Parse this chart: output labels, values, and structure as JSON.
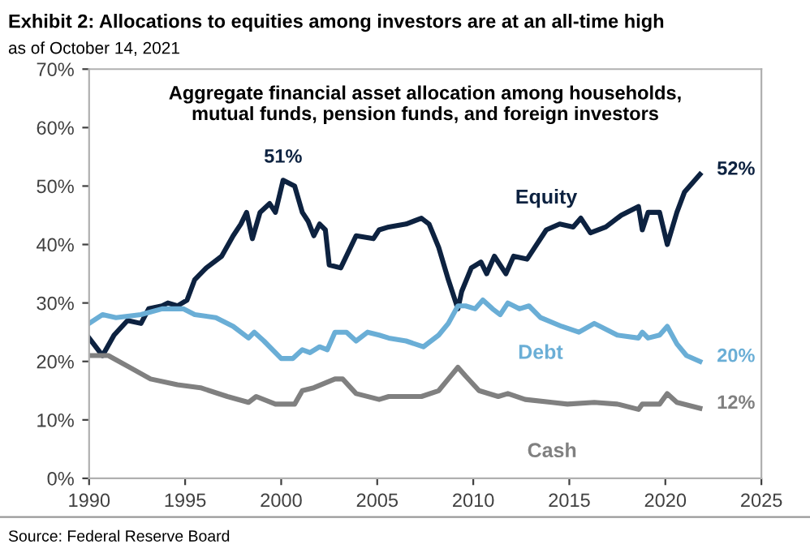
{
  "chart_data": {
    "type": "line",
    "title": "Exhibit 2: Allocations to equities among investors are at an all-time high",
    "subtitle": "as of October 14, 2021",
    "annotations": [
      "Aggregate financial asset allocation among households,\nmutual funds, pension funds, and foreign investors",
      "Source: Federal Reserve Board"
    ],
    "xlim": [
      1990,
      2025
    ],
    "ylim": [
      0,
      70
    ],
    "xticks": [
      1990,
      1995,
      2000,
      2005,
      2010,
      2015,
      2020,
      2025
    ],
    "yticks": [
      {
        "value": 0,
        "label": "0%"
      },
      {
        "value": 10,
        "label": "10%"
      },
      {
        "value": 20,
        "label": "20%"
      },
      {
        "value": 30,
        "label": "30%"
      },
      {
        "value": 40,
        "label": "40%"
      },
      {
        "value": 50,
        "label": "50%"
      },
      {
        "value": 60,
        "label": "60%"
      },
      {
        "value": 70,
        "label": "70%"
      }
    ],
    "grid": false,
    "legend": false,
    "marker": "none",
    "line_style": "solid",
    "series": [
      {
        "name": "Equity",
        "color": "#0d2240",
        "x": [
          1990,
          1990.7,
          1991.3,
          1992.0,
          1992.7,
          1993.1,
          1993.8,
          1994.1,
          1994.6,
          1995.1,
          1995.5,
          1996.1,
          1996.9,
          1997.5,
          1997.9,
          1998.2,
          1998.5,
          1998.9,
          1999.4,
          1999.7,
          2000.1,
          2000.7,
          2001.1,
          2001.4,
          2001.7,
          2002.0,
          2002.3,
          2002.5,
          2003.1,
          2003.9,
          2004.8,
          2005.1,
          2005.6,
          2006.5,
          2007.3,
          2007.7,
          2008.2,
          2008.7,
          2009.2,
          2009.4,
          2009.9,
          2010.4,
          2010.7,
          2011.1,
          2011.7,
          2012.1,
          2012.8,
          2013.8,
          2014.5,
          2015.2,
          2015.6,
          2016.1,
          2016.9,
          2017.7,
          2018.6,
          2018.8,
          2019.1,
          2019.7,
          2020.1,
          2020.6,
          2021.0,
          2021.8
        ],
        "value_labels": [
          null,
          null,
          null,
          null,
          null,
          null,
          null,
          null,
          null,
          null,
          null,
          null,
          null,
          null,
          null,
          null,
          null,
          null,
          null,
          null,
          "51%",
          null,
          null,
          null,
          null,
          null,
          null,
          null,
          null,
          null,
          null,
          null,
          null,
          null,
          null,
          null,
          null,
          null,
          null,
          null,
          null,
          null,
          null,
          null,
          null,
          null,
          null,
          null,
          null,
          null,
          null,
          null,
          null,
          null,
          null,
          null,
          null,
          null,
          null,
          null,
          null,
          "52%"
        ],
        "values": [
          24,
          21,
          24.5,
          27,
          26.5,
          29,
          29.5,
          30,
          29.5,
          30.5,
          34,
          36,
          38,
          41.5,
          43.5,
          45.5,
          41,
          45.5,
          47,
          45.5,
          51,
          50,
          45.5,
          44,
          41.5,
          43.5,
          42.5,
          36.5,
          36,
          41.5,
          41,
          42.5,
          43,
          43.5,
          44.5,
          43.5,
          39.5,
          34,
          29,
          32,
          36,
          37,
          35,
          38,
          35,
          38,
          37.5,
          42.5,
          43.5,
          43,
          44.5,
          42,
          43,
          45,
          46.5,
          42.5,
          45.5,
          45.5,
          40,
          45.5,
          49,
          52
        ]
      },
      {
        "name": "Debt",
        "color": "#6aaed6",
        "x": [
          1990,
          1990.7,
          1991.4,
          1992.7,
          1993.8,
          1994.9,
          1995.5,
          1996.6,
          1997.5,
          1998.3,
          1998.6,
          1999.1,
          2000.0,
          2000.6,
          2001.1,
          2001.5,
          2002.0,
          2002.4,
          2002.8,
          2003.4,
          2003.9,
          2004.5,
          2005.1,
          2005.6,
          2006.5,
          2007.4,
          2008.2,
          2008.7,
          2009.2,
          2009.6,
          2010.1,
          2010.5,
          2011.0,
          2011.4,
          2011.8,
          2012.4,
          2012.9,
          2013.5,
          2014.6,
          2015.5,
          2016.3,
          2017.5,
          2018.6,
          2018.8,
          2019.1,
          2019.7,
          2020.1,
          2020.6,
          2021.1,
          2021.8
        ],
        "value_labels": [
          null,
          null,
          null,
          null,
          null,
          null,
          null,
          null,
          null,
          null,
          null,
          null,
          null,
          null,
          null,
          null,
          null,
          null,
          null,
          null,
          null,
          null,
          null,
          null,
          null,
          null,
          null,
          null,
          null,
          null,
          null,
          null,
          null,
          null,
          null,
          null,
          null,
          null,
          null,
          null,
          null,
          null,
          null,
          null,
          null,
          null,
          null,
          null,
          null,
          "20%"
        ],
        "values": [
          26.5,
          28,
          27.5,
          28,
          29,
          29,
          28,
          27.5,
          26,
          24,
          25,
          23.5,
          20.5,
          20.5,
          22,
          21.5,
          22.5,
          22,
          25,
          25,
          23.5,
          25,
          24.5,
          24,
          23.5,
          22.5,
          24.5,
          26.5,
          29.5,
          29.5,
          29,
          30.5,
          29,
          28,
          30,
          29,
          29.5,
          27.5,
          26,
          25,
          26.5,
          24.5,
          24,
          25,
          24,
          24.5,
          26,
          23,
          21,
          20
        ]
      },
      {
        "name": "Cash",
        "color": "#808080",
        "x": [
          1990,
          1991.0,
          1992.1,
          1993.2,
          1994.6,
          1995.8,
          1997.2,
          1998.3,
          1998.7,
          1999.7,
          2000.7,
          2001.1,
          2001.7,
          2002.8,
          2003.2,
          2003.9,
          2005.1,
          2005.6,
          2007.3,
          2008.2,
          2008.7,
          2009.2,
          2009.6,
          2010.3,
          2011.3,
          2011.8,
          2012.7,
          2014.1,
          2014.9,
          2016.3,
          2017.5,
          2018.6,
          2018.8,
          2019.7,
          2020.1,
          2020.6,
          2021.8
        ],
        "value_labels": [
          null,
          null,
          null,
          null,
          null,
          null,
          null,
          null,
          null,
          null,
          null,
          null,
          null,
          null,
          null,
          null,
          null,
          null,
          null,
          null,
          null,
          null,
          null,
          null,
          null,
          null,
          null,
          null,
          null,
          null,
          null,
          null,
          null,
          null,
          null,
          null,
          "12%"
        ],
        "values": [
          21,
          21,
          19,
          17,
          16,
          15.5,
          14,
          13,
          14,
          12.7,
          12.7,
          15,
          15.5,
          17,
          17,
          14.5,
          13.5,
          14,
          14,
          15,
          17,
          19,
          17.5,
          15,
          14,
          14.5,
          13.5,
          13,
          12.7,
          13,
          12.7,
          11.8,
          12.7,
          12.7,
          14.5,
          13,
          12
        ]
      }
    ]
  }
}
